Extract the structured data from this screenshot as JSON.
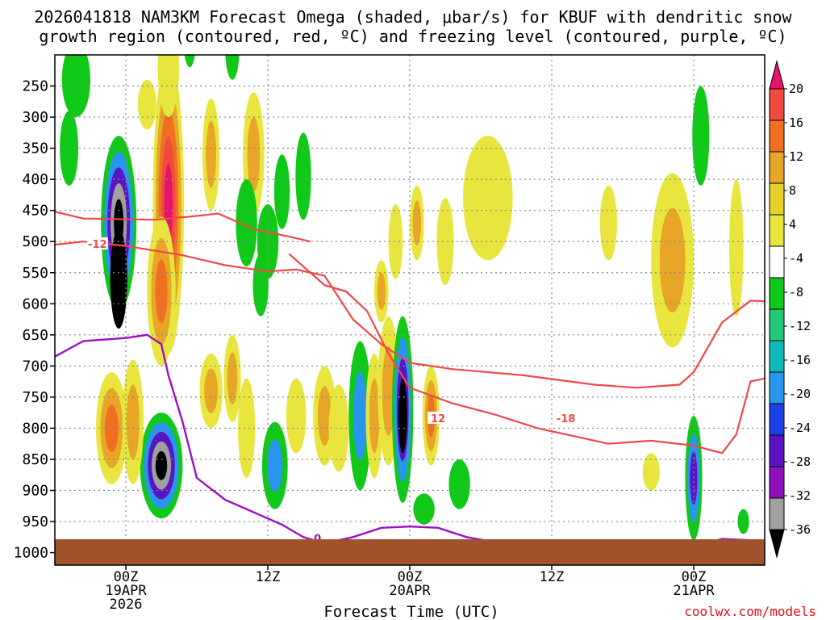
{
  "chart_data": {
    "type": "heatmap",
    "title_line1": "2026041818 NAM3KM Forecast Omega (shaded, μbar/s) for KBUF with dendritic snow",
    "title_line2": "growth region (contoured, red, ºC) and freezing level (contoured, purple, ºC)",
    "xlabel": "Forecast Time (UTC)",
    "credit": "coolwx.com/models",
    "colors": {
      "dgz": "#f04848",
      "freezing": "#9a10c8",
      "ground": "#a0522d",
      "grid": "#888888"
    },
    "x_hours_range": [
      -10,
      90
    ],
    "p_range": [
      200,
      1020
    ],
    "x_ticks": [
      {
        "hour": 0,
        "lines": [
          "00Z",
          "19APR",
          "2026"
        ]
      },
      {
        "hour": 20,
        "lines": [
          "12Z"
        ]
      },
      {
        "hour": 40,
        "lines": [
          "00Z",
          "20APR"
        ]
      },
      {
        "hour": 60,
        "lines": [
          "12Z"
        ]
      },
      {
        "hour": 80,
        "lines": [
          "00Z",
          "21APR"
        ]
      }
    ],
    "y_ticks": [
      250,
      300,
      350,
      400,
      450,
      500,
      550,
      600,
      650,
      700,
      750,
      800,
      850,
      900,
      950,
      1000
    ],
    "colorbar": {
      "labels": [
        "20",
        "16",
        "12",
        "8",
        "4",
        "-4",
        "-8",
        "-12",
        "-16",
        "-20",
        "-24",
        "-28",
        "-32",
        "-36"
      ],
      "colors": [
        "#e5146e",
        "#f24a3c",
        "#f07020",
        "#e8a628",
        "#e6d12a",
        "#e9e53f",
        "#ffffff",
        "#10c818",
        "#20c878",
        "#10b8b8",
        "#2896ee",
        "#1c40e6",
        "#5a14c4",
        "#9010c0",
        "#a0a0a0",
        "#000000"
      ]
    },
    "dgz_contours": [
      {
        "label": "-12",
        "points": [
          [
            -10,
            452
          ],
          [
            -6,
            463
          ],
          [
            4,
            465
          ],
          [
            9,
            460
          ],
          [
            13,
            455
          ],
          [
            18,
            480
          ],
          [
            23,
            492
          ],
          [
            26,
            500
          ]
        ]
      },
      {
        "label": "-12",
        "points": [
          [
            -10,
            505
          ],
          [
            -6,
            500
          ],
          [
            0,
            507
          ],
          [
            8,
            522
          ],
          [
            14,
            538
          ],
          [
            20,
            548
          ],
          [
            24,
            545
          ],
          [
            28,
            555
          ],
          [
            32,
            625
          ],
          [
            36,
            665
          ],
          [
            40,
            695
          ],
          [
            46,
            705
          ],
          [
            56,
            715
          ],
          [
            66,
            730
          ],
          [
            72,
            735
          ],
          [
            78,
            730
          ],
          [
            80,
            710
          ],
          [
            84,
            630
          ],
          [
            88,
            595
          ],
          [
            90,
            596
          ]
        ]
      },
      {
        "label": "-18",
        "points": [
          [
            23,
            520
          ],
          [
            28,
            570
          ],
          [
            31,
            580
          ],
          [
            34,
            612
          ],
          [
            37,
            680
          ],
          [
            40,
            735
          ],
          [
            46,
            760
          ],
          [
            52,
            778
          ],
          [
            58,
            800
          ],
          [
            62,
            810
          ],
          [
            68,
            825
          ],
          [
            74,
            820
          ],
          [
            80,
            828
          ],
          [
            84,
            840
          ],
          [
            86,
            810
          ],
          [
            88,
            725
          ],
          [
            90,
            720
          ]
        ]
      }
    ],
    "dgz_labels": [
      {
        "text": "-12",
        "hour": -4,
        "p": 505
      },
      {
        "text": "12",
        "hour": 44,
        "p": 785
      },
      {
        "text": "-18",
        "hour": 62,
        "p": 785
      }
    ],
    "freezing_contour": {
      "label": "0",
      "points": [
        [
          -10,
          685
        ],
        [
          -6,
          660
        ],
        [
          0,
          655
        ],
        [
          3,
          650
        ],
        [
          5,
          665
        ],
        [
          6,
          715
        ],
        [
          8,
          790
        ],
        [
          10,
          880
        ],
        [
          14,
          915
        ],
        [
          18,
          935
        ],
        [
          22,
          955
        ],
        [
          25,
          975
        ],
        [
          28,
          985
        ],
        [
          32,
          975
        ],
        [
          36,
          960
        ],
        [
          40,
          958
        ],
        [
          44,
          960
        ],
        [
          48,
          975
        ],
        [
          52,
          983
        ],
        [
          56,
          988
        ],
        [
          62,
          990
        ],
        [
          68,
          988
        ],
        [
          72,
          985
        ],
        [
          76,
          985
        ],
        [
          80,
          990
        ],
        [
          84,
          978
        ],
        [
          88,
          980
        ],
        [
          90,
          985
        ]
      ]
    },
    "freezing_label": {
      "text": "0",
      "hour": 27,
      "p": 978
    },
    "omega_blobs": [
      {
        "cx": -1,
        "cp": 470,
        "rx": 2.5,
        "rp": 140,
        "levels": [
          -8,
          -16,
          -24,
          -32,
          -36
        ]
      },
      {
        "cx": -1,
        "cp": 560,
        "rx": 1.2,
        "rp": 80,
        "levels": [
          -36
        ]
      },
      {
        "cx": 5,
        "cp": 860,
        "rx": 3,
        "rp": 85,
        "levels": [
          -8,
          -16,
          -24,
          -32,
          -36
        ]
      },
      {
        "cx": 6,
        "cp": 440,
        "rx": 2.2,
        "rp": 240,
        "levels": [
          4,
          8,
          12,
          16,
          20
        ]
      },
      {
        "cx": 5,
        "cp": 580,
        "rx": 2,
        "rp": 120,
        "levels": [
          4,
          8,
          12
        ]
      },
      {
        "cx": 6,
        "cp": 220,
        "rx": 1.5,
        "rp": 80,
        "levels": [
          4
        ]
      },
      {
        "cx": 3,
        "cp": 280,
        "rx": 1.3,
        "rp": 40,
        "levels": [
          4
        ]
      },
      {
        "cx": -2,
        "cp": 800,
        "rx": 2.2,
        "rp": 90,
        "levels": [
          4,
          8,
          12
        ]
      },
      {
        "cx": 1,
        "cp": 790,
        "rx": 1.5,
        "rp": 100,
        "levels": [
          4,
          8
        ]
      },
      {
        "cx": -7,
        "cp": 240,
        "rx": 2,
        "rp": 60,
        "levels": [
          -8
        ]
      },
      {
        "cx": -8,
        "cp": 350,
        "rx": 1.3,
        "rp": 60,
        "levels": [
          -8
        ]
      },
      {
        "cx": 9,
        "cp": 160,
        "rx": 1,
        "rp": 60,
        "levels": [
          -8
        ]
      },
      {
        "cx": 15,
        "cp": 190,
        "rx": 1,
        "rp": 50,
        "levels": [
          -8
        ]
      },
      {
        "cx": 12,
        "cp": 360,
        "rx": 1.2,
        "rp": 90,
        "levels": [
          4,
          8
        ]
      },
      {
        "cx": 18,
        "cp": 360,
        "rx": 1.5,
        "rp": 100,
        "levels": [
          4,
          8
        ]
      },
      {
        "cx": 17,
        "cp": 470,
        "rx": 1.5,
        "rp": 70,
        "levels": [
          -8
        ]
      },
      {
        "cx": 20,
        "cp": 500,
        "rx": 1.5,
        "rp": 60,
        "levels": [
          -8
        ]
      },
      {
        "cx": 22,
        "cp": 420,
        "rx": 1.1,
        "rp": 60,
        "levels": [
          -8
        ]
      },
      {
        "cx": 25,
        "cp": 395,
        "rx": 1.1,
        "rp": 70,
        "levels": [
          -8
        ]
      },
      {
        "cx": 19,
        "cp": 570,
        "rx": 1.1,
        "rp": 50,
        "levels": [
          -8
        ]
      },
      {
        "cx": 12,
        "cp": 740,
        "rx": 1.6,
        "rp": 60,
        "levels": [
          4,
          8
        ]
      },
      {
        "cx": 15,
        "cp": 720,
        "rx": 1.2,
        "rp": 70,
        "levels": [
          4,
          8
        ]
      },
      {
        "cx": 17,
        "cp": 800,
        "rx": 1.2,
        "rp": 80,
        "levels": [
          4
        ]
      },
      {
        "cx": 21,
        "cp": 860,
        "rx": 1.8,
        "rp": 70,
        "levels": [
          -8,
          -16
        ]
      },
      {
        "cx": 24,
        "cp": 780,
        "rx": 1.4,
        "rp": 60,
        "levels": [
          4
        ]
      },
      {
        "cx": 28,
        "cp": 780,
        "rx": 1.6,
        "rp": 80,
        "levels": [
          4,
          8
        ]
      },
      {
        "cx": 30,
        "cp": 800,
        "rx": 1.4,
        "rp": 70,
        "levels": [
          4
        ]
      },
      {
        "cx": 33,
        "cp": 780,
        "rx": 1.6,
        "rp": 120,
        "levels": [
          -8,
          -16
        ]
      },
      {
        "cx": 35,
        "cp": 780,
        "rx": 1.2,
        "rp": 100,
        "levels": [
          4,
          8
        ]
      },
      {
        "cx": 36,
        "cp": 580,
        "rx": 1,
        "rp": 50,
        "levels": [
          4,
          8
        ]
      },
      {
        "cx": 37,
        "cp": 740,
        "rx": 1.5,
        "rp": 120,
        "levels": [
          4,
          8
        ]
      },
      {
        "cx": 39,
        "cp": 770,
        "rx": 1.5,
        "rp": 150,
        "levels": [
          -8,
          -16,
          -24,
          -32
        ]
      },
      {
        "cx": 39,
        "cp": 780,
        "rx": 0.6,
        "rp": 60,
        "levels": [
          -36
        ]
      },
      {
        "cx": 38,
        "cp": 500,
        "rx": 1,
        "rp": 60,
        "levels": [
          4
        ]
      },
      {
        "cx": 41,
        "cp": 470,
        "rx": 1,
        "rp": 60,
        "levels": [
          4,
          8
        ]
      },
      {
        "cx": 43,
        "cp": 780,
        "rx": 1.2,
        "rp": 80,
        "levels": [
          4,
          8,
          12
        ]
      },
      {
        "cx": 45,
        "cp": 500,
        "rx": 1.2,
        "rp": 70,
        "levels": [
          4
        ]
      },
      {
        "cx": 47,
        "cp": 890,
        "rx": 1.5,
        "rp": 40,
        "levels": [
          -8
        ]
      },
      {
        "cx": 51,
        "cp": 430,
        "rx": 3.5,
        "rp": 100,
        "levels": [
          4
        ]
      },
      {
        "cx": 42,
        "cp": 930,
        "rx": 1.5,
        "rp": 25,
        "levels": [
          -8
        ]
      },
      {
        "cx": 68,
        "cp": 470,
        "rx": 1.2,
        "rp": 60,
        "levels": [
          4
        ]
      },
      {
        "cx": 74,
        "cp": 870,
        "rx": 1.2,
        "rp": 30,
        "levels": [
          4
        ]
      },
      {
        "cx": 77,
        "cp": 530,
        "rx": 3,
        "rp": 140,
        "levels": [
          4,
          8
        ]
      },
      {
        "cx": 80,
        "cp": 880,
        "rx": 1.2,
        "rp": 100,
        "levels": [
          -8,
          -16,
          -24
        ]
      },
      {
        "cx": 81,
        "cp": 330,
        "rx": 1.2,
        "rp": 80,
        "levels": [
          -8
        ]
      },
      {
        "cx": 86,
        "cp": 510,
        "rx": 1,
        "rp": 110,
        "levels": [
          4
        ]
      },
      {
        "cx": 87,
        "cp": 950,
        "rx": 0.8,
        "rp": 20,
        "levels": [
          -8
        ]
      }
    ]
  }
}
